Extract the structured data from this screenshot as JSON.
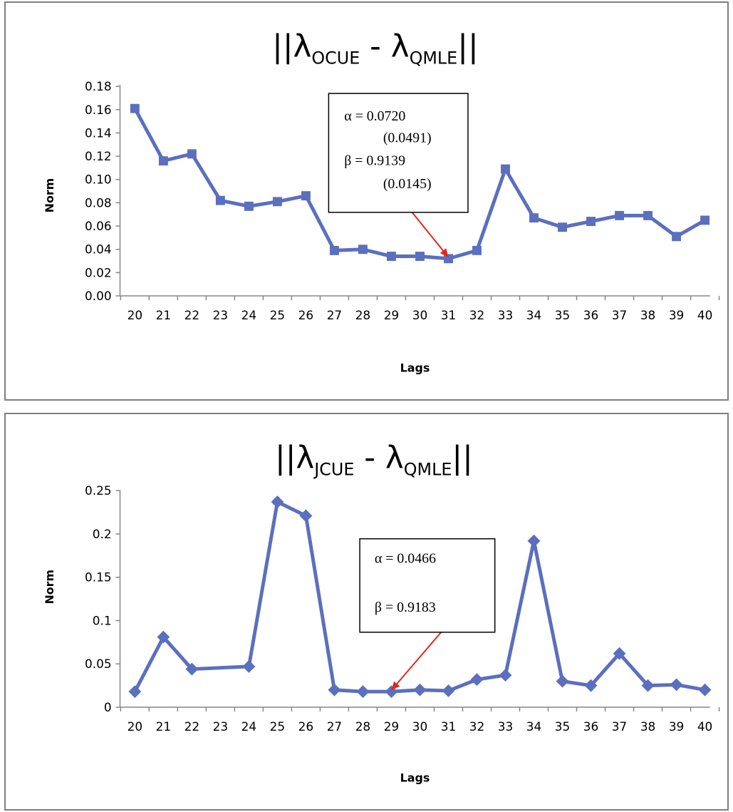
{
  "charts": [
    {
      "id": "chart1",
      "title_main": "||λ",
      "title_sub1": "OCUE",
      "title_mid": " - λ",
      "title_sub2": "QMLE",
      "title_end": "||",
      "xlabel": "Lags",
      "ylabel": "Norm",
      "annotation_lines": [
        "α = 0.0720",
        "(0.0491)",
        "β = 0.9139",
        "(0.0145)"
      ],
      "arrow_target_lag": 31
    },
    {
      "id": "chart2",
      "title_main": "||λ",
      "title_sub1": "JCUE",
      "title_mid": " - λ",
      "title_sub2": "QMLE",
      "title_end": "||",
      "xlabel": "Lags",
      "ylabel": "Norm",
      "annotation_lines": [
        "α = 0.0466",
        "β = 0.9183"
      ],
      "arrow_target_lag": 29
    }
  ],
  "chart_data": [
    {
      "type": "line",
      "title": "||λOCUE - λQMLE||",
      "xlabel": "Lags",
      "ylabel": "Norm",
      "x": [
        20,
        21,
        22,
        23,
        24,
        25,
        26,
        27,
        28,
        29,
        30,
        31,
        32,
        33,
        34,
        35,
        36,
        37,
        38,
        39,
        40
      ],
      "series": [
        {
          "marker": "square",
          "color": "#5b6fbe",
          "values": [
            0.161,
            0.116,
            0.122,
            0.082,
            0.077,
            0.081,
            0.086,
            0.039,
            0.04,
            0.034,
            0.034,
            0.032,
            0.039,
            0.109,
            0.067,
            0.059,
            0.064,
            0.069,
            0.069,
            0.051,
            0.065
          ]
        }
      ],
      "ylim": [
        0,
        0.18
      ],
      "yticks": [
        "0.00",
        "0.02",
        "0.04",
        "0.06",
        "0.08",
        "0.10",
        "0.12",
        "0.14",
        "0.16",
        "0.18"
      ],
      "grid": false,
      "legend": "none"
    },
    {
      "type": "line",
      "title": "||λJCUE - λQMLE||",
      "xlabel": "Lags",
      "ylabel": "Norm",
      "x": [
        20,
        21,
        22,
        24,
        25,
        26,
        27,
        28,
        29,
        30,
        31,
        32,
        33,
        34,
        35,
        36,
        37,
        38,
        39,
        40
      ],
      "xticks": [
        20,
        21,
        22,
        23,
        24,
        25,
        26,
        27,
        28,
        29,
        30,
        31,
        32,
        33,
        34,
        35,
        36,
        37,
        38,
        39,
        40
      ],
      "series": [
        {
          "marker": "diamond",
          "color": "#5b6fbe",
          "values": [
            0.018,
            0.081,
            0.044,
            0.047,
            0.237,
            0.221,
            0.02,
            0.018,
            0.018,
            0.02,
            0.019,
            0.032,
            0.037,
            0.192,
            0.03,
            0.025,
            0.062,
            0.025,
            0.026,
            0.02
          ]
        }
      ],
      "ylim": [
        0,
        0.25
      ],
      "yticks": [
        "0",
        "0.05",
        "0.1",
        "0.15",
        "0.2",
        "0.25"
      ],
      "grid": false,
      "legend": "none"
    }
  ]
}
